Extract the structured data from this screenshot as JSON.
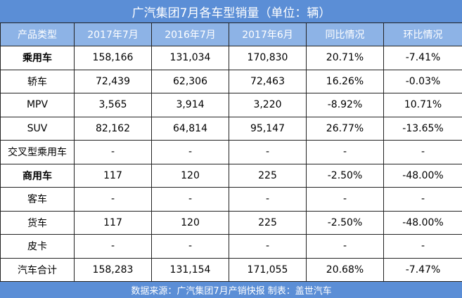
{
  "title": "广汽集团7月各车型销量（单位：辆）",
  "header": [
    "产品类型",
    "2017年7月",
    "2016年7月",
    "2017年6月",
    "同比情况",
    "环比情况"
  ],
  "rows": [
    {
      "cells": [
        "乘用车",
        "158,166",
        "131,034",
        "170,830",
        "20.71%",
        "-7.41%"
      ],
      "bold": true
    },
    {
      "cells": [
        "轿车",
        "72,439",
        "62,306",
        "72,463",
        "16.26%",
        "-0.03%"
      ]
    },
    {
      "cells": [
        "MPV",
        "3,565",
        "3,914",
        "3,220",
        "-8.92%",
        "10.71%"
      ]
    },
    {
      "cells": [
        "SUV",
        "82,162",
        "64,814",
        "95,147",
        "26.77%",
        "-13.65%"
      ]
    },
    {
      "cells": [
        "交叉型乘用车",
        "-",
        "-",
        "-",
        "-",
        "-"
      ]
    },
    {
      "cells": [
        "商用车",
        "117",
        "120",
        "225",
        "-2.50%",
        "-48.00%"
      ],
      "bold": true
    },
    {
      "cells": [
        "客车",
        "-",
        "-",
        "-",
        "-",
        "-"
      ]
    },
    {
      "cells": [
        "货车",
        "117",
        "120",
        "225",
        "-2.50%",
        "-48.00%"
      ]
    },
    {
      "cells": [
        "皮卡",
        "-",
        "-",
        "-",
        "-",
        "-"
      ]
    },
    {
      "cells": [
        "汽车合计",
        "158,283",
        "131,154",
        "171,055",
        "20.68%",
        "-7.47%"
      ]
    }
  ],
  "footer": "数据来源：广汽集团7月产销快报 制表：盖世汽车"
}
